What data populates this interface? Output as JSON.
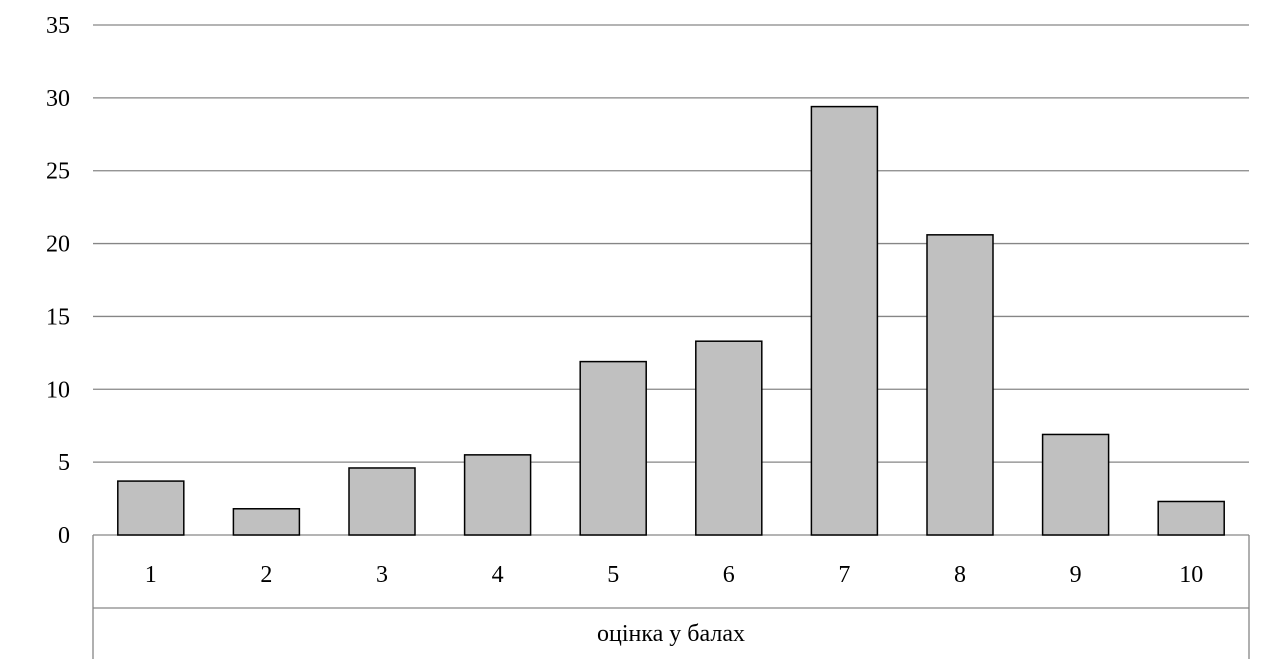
{
  "chart_data": {
    "type": "bar",
    "categories": [
      "1",
      "2",
      "3",
      "4",
      "5",
      "6",
      "7",
      "8",
      "9",
      "10"
    ],
    "values": [
      3.7,
      1.8,
      4.6,
      5.5,
      11.9,
      13.3,
      29.4,
      20.6,
      6.9,
      2.3
    ],
    "xlabel": "оцінка у балах",
    "ylabel": "",
    "ylim": [
      0,
      35
    ],
    "yticks": [
      0,
      5,
      10,
      15,
      20,
      25,
      30,
      35
    ],
    "grid": true,
    "legend": "none",
    "colors": {
      "bar_fill": "#c0c0c0",
      "bar_stroke": "#000000",
      "gridline": "#868686",
      "frame": "#868686"
    }
  }
}
